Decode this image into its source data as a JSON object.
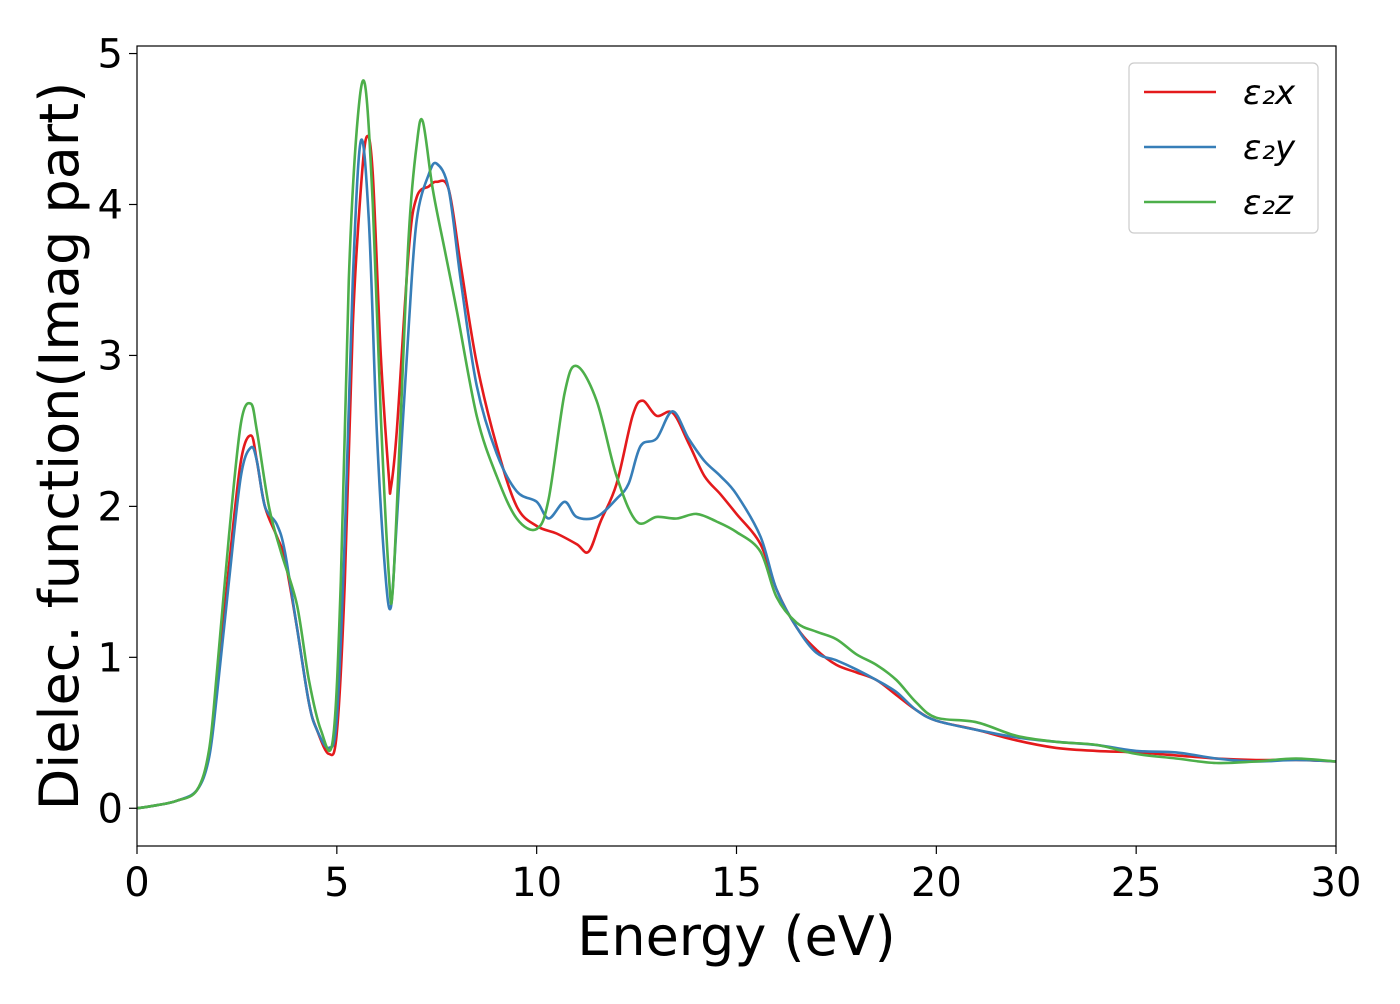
{
  "chart_data": {
    "type": "line",
    "xlabel": "Energy (eV)",
    "ylabel": "Dielec. function(Imag part)",
    "xlim": [
      0,
      30
    ],
    "ylim": [
      -0.25,
      5.05
    ],
    "xticks": [
      "0",
      "5",
      "10",
      "15",
      "20",
      "25",
      "30"
    ],
    "yticks": [
      "0",
      "1",
      "2",
      "3",
      "4",
      "5"
    ],
    "grid": false,
    "legend_position": "top-right",
    "series": [
      {
        "name": "ε₂x",
        "color": "#e41a1c",
        "points": [
          [
            0,
            0.0
          ],
          [
            0.5,
            0.02
          ],
          [
            1.0,
            0.05
          ],
          [
            1.5,
            0.12
          ],
          [
            1.8,
            0.35
          ],
          [
            2.0,
            0.8
          ],
          [
            2.3,
            1.6
          ],
          [
            2.6,
            2.3
          ],
          [
            2.85,
            2.47
          ],
          [
            3.0,
            2.3
          ],
          [
            3.2,
            2.0
          ],
          [
            3.5,
            1.8
          ],
          [
            3.7,
            1.65
          ],
          [
            4.0,
            1.2
          ],
          [
            4.3,
            0.7
          ],
          [
            4.5,
            0.52
          ],
          [
            4.8,
            0.36
          ],
          [
            5.0,
            0.5
          ],
          [
            5.2,
            1.5
          ],
          [
            5.4,
            3.2
          ],
          [
            5.6,
            4.1
          ],
          [
            5.75,
            4.45
          ],
          [
            5.9,
            4.2
          ],
          [
            6.1,
            3.0
          ],
          [
            6.3,
            2.2
          ],
          [
            6.35,
            2.12
          ],
          [
            6.5,
            2.5
          ],
          [
            6.8,
            3.7
          ],
          [
            7.0,
            4.05
          ],
          [
            7.3,
            4.12
          ],
          [
            7.5,
            4.15
          ],
          [
            7.8,
            4.1
          ],
          [
            8.1,
            3.6
          ],
          [
            8.5,
            2.95
          ],
          [
            9.0,
            2.4
          ],
          [
            9.5,
            2.0
          ],
          [
            10.0,
            1.87
          ],
          [
            10.5,
            1.82
          ],
          [
            11.0,
            1.75
          ],
          [
            11.3,
            1.7
          ],
          [
            11.6,
            1.9
          ],
          [
            12.0,
            2.15
          ],
          [
            12.4,
            2.6
          ],
          [
            12.65,
            2.7
          ],
          [
            13.0,
            2.6
          ],
          [
            13.4,
            2.62
          ],
          [
            13.8,
            2.42
          ],
          [
            14.2,
            2.2
          ],
          [
            14.6,
            2.08
          ],
          [
            15.0,
            1.95
          ],
          [
            15.6,
            1.75
          ],
          [
            16.0,
            1.45
          ],
          [
            16.5,
            1.2
          ],
          [
            17.0,
            1.05
          ],
          [
            17.5,
            0.95
          ],
          [
            18.0,
            0.9
          ],
          [
            18.5,
            0.85
          ],
          [
            19.0,
            0.75
          ],
          [
            19.5,
            0.65
          ],
          [
            20.0,
            0.58
          ],
          [
            21.0,
            0.52
          ],
          [
            22.0,
            0.45
          ],
          [
            23.0,
            0.4
          ],
          [
            24.0,
            0.38
          ],
          [
            25.0,
            0.37
          ],
          [
            26.0,
            0.35
          ],
          [
            27.0,
            0.33
          ],
          [
            28.0,
            0.32
          ],
          [
            29.0,
            0.32
          ],
          [
            30.0,
            0.31
          ]
        ]
      },
      {
        "name": "ε₂y",
        "color": "#377eb8",
        "points": [
          [
            0,
            0.0
          ],
          [
            0.5,
            0.02
          ],
          [
            1.0,
            0.05
          ],
          [
            1.5,
            0.12
          ],
          [
            1.8,
            0.33
          ],
          [
            2.0,
            0.75
          ],
          [
            2.3,
            1.5
          ],
          [
            2.6,
            2.2
          ],
          [
            2.85,
            2.39
          ],
          [
            3.0,
            2.3
          ],
          [
            3.2,
            2.0
          ],
          [
            3.5,
            1.88
          ],
          [
            3.7,
            1.7
          ],
          [
            4.0,
            1.2
          ],
          [
            4.3,
            0.7
          ],
          [
            4.5,
            0.52
          ],
          [
            4.8,
            0.4
          ],
          [
            5.0,
            0.6
          ],
          [
            5.2,
            1.8
          ],
          [
            5.4,
            3.5
          ],
          [
            5.6,
            4.42
          ],
          [
            5.8,
            3.9
          ],
          [
            6.0,
            2.5
          ],
          [
            6.2,
            1.6
          ],
          [
            6.35,
            1.33
          ],
          [
            6.5,
            1.9
          ],
          [
            6.8,
            3.2
          ],
          [
            7.0,
            3.9
          ],
          [
            7.3,
            4.2
          ],
          [
            7.5,
            4.27
          ],
          [
            7.8,
            4.1
          ],
          [
            8.1,
            3.5
          ],
          [
            8.5,
            2.8
          ],
          [
            9.0,
            2.35
          ],
          [
            9.5,
            2.1
          ],
          [
            10.0,
            2.03
          ],
          [
            10.3,
            1.92
          ],
          [
            10.7,
            2.03
          ],
          [
            11.0,
            1.93
          ],
          [
            11.5,
            1.93
          ],
          [
            12.0,
            2.05
          ],
          [
            12.3,
            2.15
          ],
          [
            12.6,
            2.4
          ],
          [
            13.0,
            2.45
          ],
          [
            13.4,
            2.63
          ],
          [
            13.8,
            2.45
          ],
          [
            14.2,
            2.3
          ],
          [
            14.6,
            2.2
          ],
          [
            15.0,
            2.08
          ],
          [
            15.6,
            1.8
          ],
          [
            16.0,
            1.45
          ],
          [
            16.5,
            1.2
          ],
          [
            17.0,
            1.03
          ],
          [
            17.5,
            0.98
          ],
          [
            18.0,
            0.92
          ],
          [
            18.5,
            0.85
          ],
          [
            19.0,
            0.77
          ],
          [
            19.5,
            0.65
          ],
          [
            20.0,
            0.58
          ],
          [
            21.0,
            0.52
          ],
          [
            22.0,
            0.47
          ],
          [
            23.0,
            0.44
          ],
          [
            24.0,
            0.42
          ],
          [
            25.0,
            0.38
          ],
          [
            26.0,
            0.37
          ],
          [
            27.0,
            0.33
          ],
          [
            28.0,
            0.31
          ],
          [
            29.0,
            0.32
          ],
          [
            30.0,
            0.31
          ]
        ]
      },
      {
        "name": "ε₂z",
        "color": "#4daf4a",
        "points": [
          [
            0,
            0.0
          ],
          [
            0.5,
            0.02
          ],
          [
            1.0,
            0.05
          ],
          [
            1.5,
            0.12
          ],
          [
            1.8,
            0.38
          ],
          [
            2.0,
            0.9
          ],
          [
            2.3,
            1.8
          ],
          [
            2.6,
            2.55
          ],
          [
            2.85,
            2.68
          ],
          [
            3.0,
            2.5
          ],
          [
            3.3,
            2.0
          ],
          [
            3.6,
            1.7
          ],
          [
            4.0,
            1.35
          ],
          [
            4.3,
            0.85
          ],
          [
            4.6,
            0.52
          ],
          [
            4.9,
            0.45
          ],
          [
            5.1,
            1.5
          ],
          [
            5.3,
            3.5
          ],
          [
            5.5,
            4.5
          ],
          [
            5.7,
            4.8
          ],
          [
            5.9,
            4.0
          ],
          [
            6.1,
            2.6
          ],
          [
            6.3,
            1.55
          ],
          [
            6.4,
            1.45
          ],
          [
            6.6,
            2.6
          ],
          [
            6.8,
            3.8
          ],
          [
            7.0,
            4.4
          ],
          [
            7.15,
            4.55
          ],
          [
            7.4,
            4.1
          ],
          [
            7.7,
            3.7
          ],
          [
            8.0,
            3.3
          ],
          [
            8.5,
            2.6
          ],
          [
            9.0,
            2.2
          ],
          [
            9.5,
            1.92
          ],
          [
            10.0,
            1.85
          ],
          [
            10.3,
            2.05
          ],
          [
            10.7,
            2.75
          ],
          [
            11.0,
            2.93
          ],
          [
            11.5,
            2.7
          ],
          [
            12.0,
            2.2
          ],
          [
            12.5,
            1.9
          ],
          [
            13.0,
            1.93
          ],
          [
            13.5,
            1.92
          ],
          [
            14.0,
            1.95
          ],
          [
            14.5,
            1.9
          ],
          [
            15.0,
            1.83
          ],
          [
            15.6,
            1.7
          ],
          [
            16.0,
            1.4
          ],
          [
            16.5,
            1.23
          ],
          [
            17.0,
            1.17
          ],
          [
            17.5,
            1.12
          ],
          [
            18.0,
            1.02
          ],
          [
            18.5,
            0.95
          ],
          [
            19.0,
            0.85
          ],
          [
            19.5,
            0.7
          ],
          [
            20.0,
            0.6
          ],
          [
            21.0,
            0.57
          ],
          [
            22.0,
            0.48
          ],
          [
            23.0,
            0.44
          ],
          [
            24.0,
            0.42
          ],
          [
            25.0,
            0.36
          ],
          [
            26.0,
            0.33
          ],
          [
            27.0,
            0.3
          ],
          [
            28.0,
            0.31
          ],
          [
            29.0,
            0.33
          ],
          [
            30.0,
            0.31
          ]
        ]
      }
    ]
  }
}
